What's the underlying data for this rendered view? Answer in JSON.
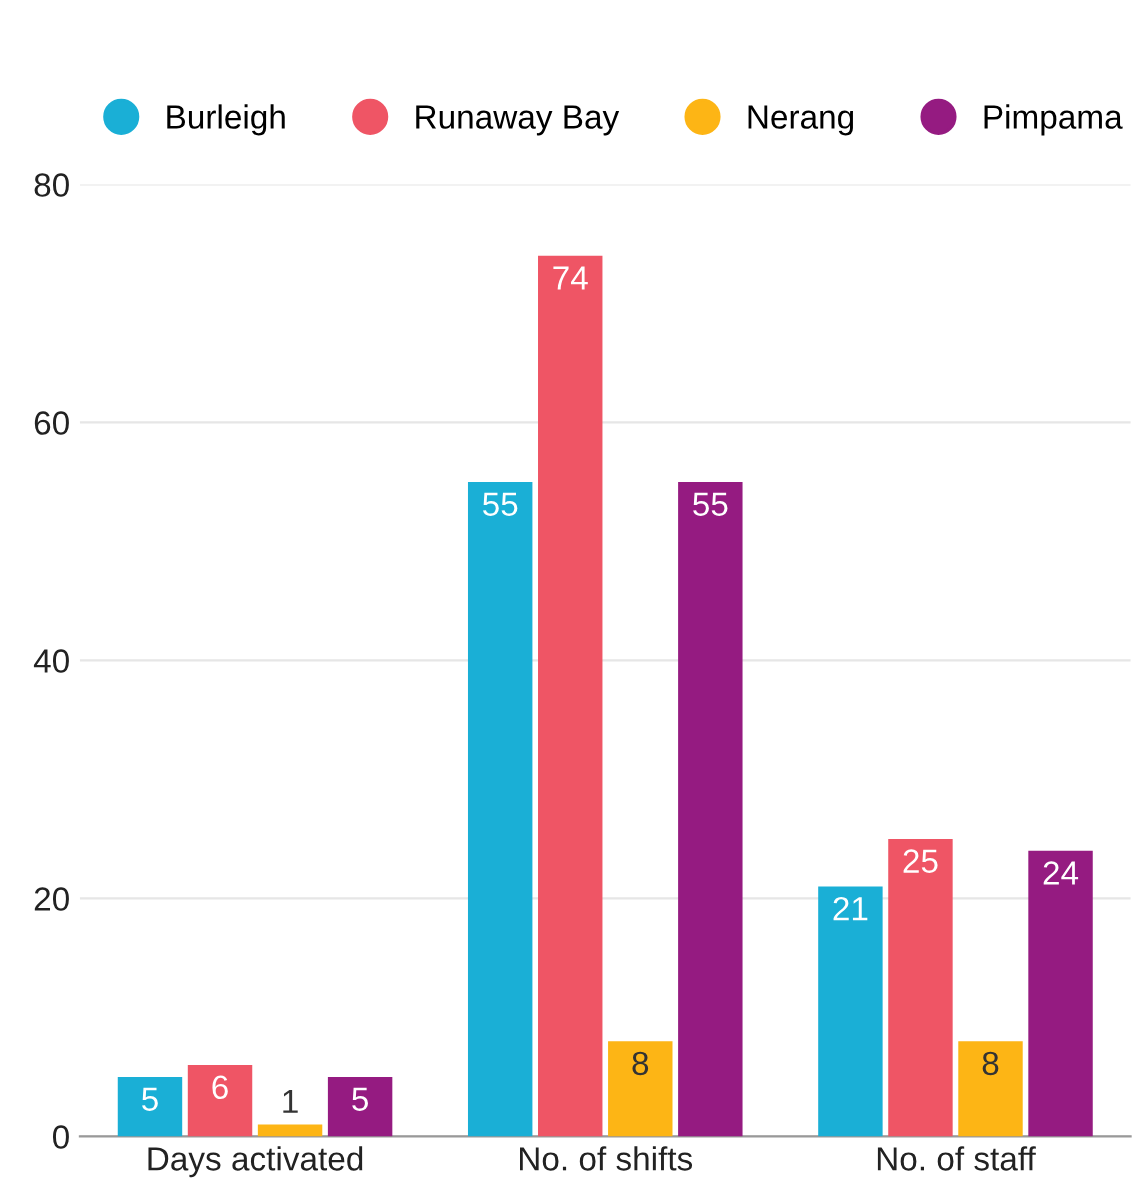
{
  "chart_data": {
    "type": "bar",
    "categories": [
      "Days activated",
      "No. of shifts",
      "No. of staff"
    ],
    "series": [
      {
        "name": "Burleigh",
        "color": "#1aafd6",
        "values": [
          5,
          55,
          21
        ]
      },
      {
        "name": "Runaway Bay",
        "color": "#ef5565",
        "values": [
          6,
          74,
          25
        ]
      },
      {
        "name": "Nerang",
        "color": "#fdb515",
        "values": [
          1,
          8,
          8
        ]
      },
      {
        "name": "Pimpama",
        "color": "#951b81",
        "values": [
          5,
          55,
          24
        ]
      }
    ],
    "ylim": [
      0,
      80
    ],
    "yticks": [
      0,
      20,
      40,
      60,
      80
    ],
    "grid": "y",
    "legend": "top",
    "data_labels": true
  }
}
